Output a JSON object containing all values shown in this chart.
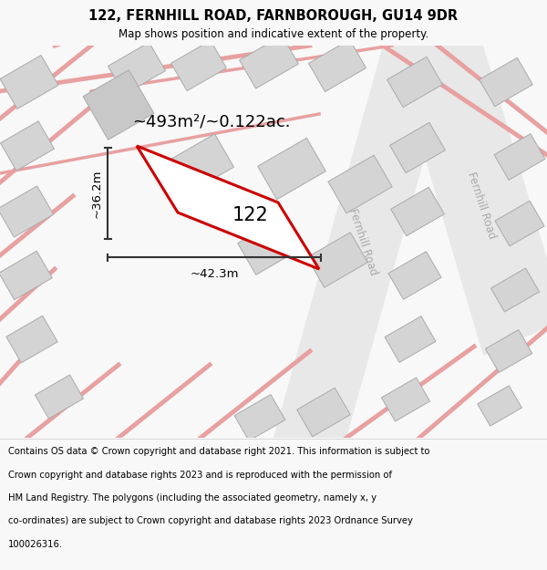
{
  "title": "122, FERNHILL ROAD, FARNBOROUGH, GU14 9DR",
  "subtitle": "Map shows position and indicative extent of the property.",
  "footer_line1": "Contains OS data © Crown copyright and database right 2021. This information is subject to",
  "footer_line2": "Crown copyright and database rights 2023 and is reproduced with the permission of",
  "footer_line3": "HM Land Registry. The polygons (including the associated geometry, namely x, y",
  "footer_line4": "co-ordinates) are subject to Crown copyright and database rights 2023 Ordnance Survey",
  "footer_line5": "100026316.",
  "area_label": "~493m²/~0.122ac.",
  "width_label": "~42.3m",
  "height_label": "~36.2m",
  "number_label": "122",
  "bg_color": "#f8f8f8",
  "map_bg": "#ffffff",
  "road_red": "#e8a0a0",
  "road_gray": "#d0d0d0",
  "building_fill": "#d4d4d4",
  "building_edge": "#aaaaaa",
  "plot_fill": "#ffffff",
  "plot_stroke": "#cc0000",
  "plot_lw": 2.2,
  "dim_color": "#333333",
  "fernhill_road_color": "#bbbbbb",
  "title_fontsize": 10.5,
  "subtitle_fontsize": 8.5,
  "footer_fontsize": 7.2,
  "area_fontsize": 13,
  "number_fontsize": 15,
  "dim_fontsize": 9.5,
  "road_label_fontsize": 8.5,
  "road_label_color": "#aaaaaa"
}
